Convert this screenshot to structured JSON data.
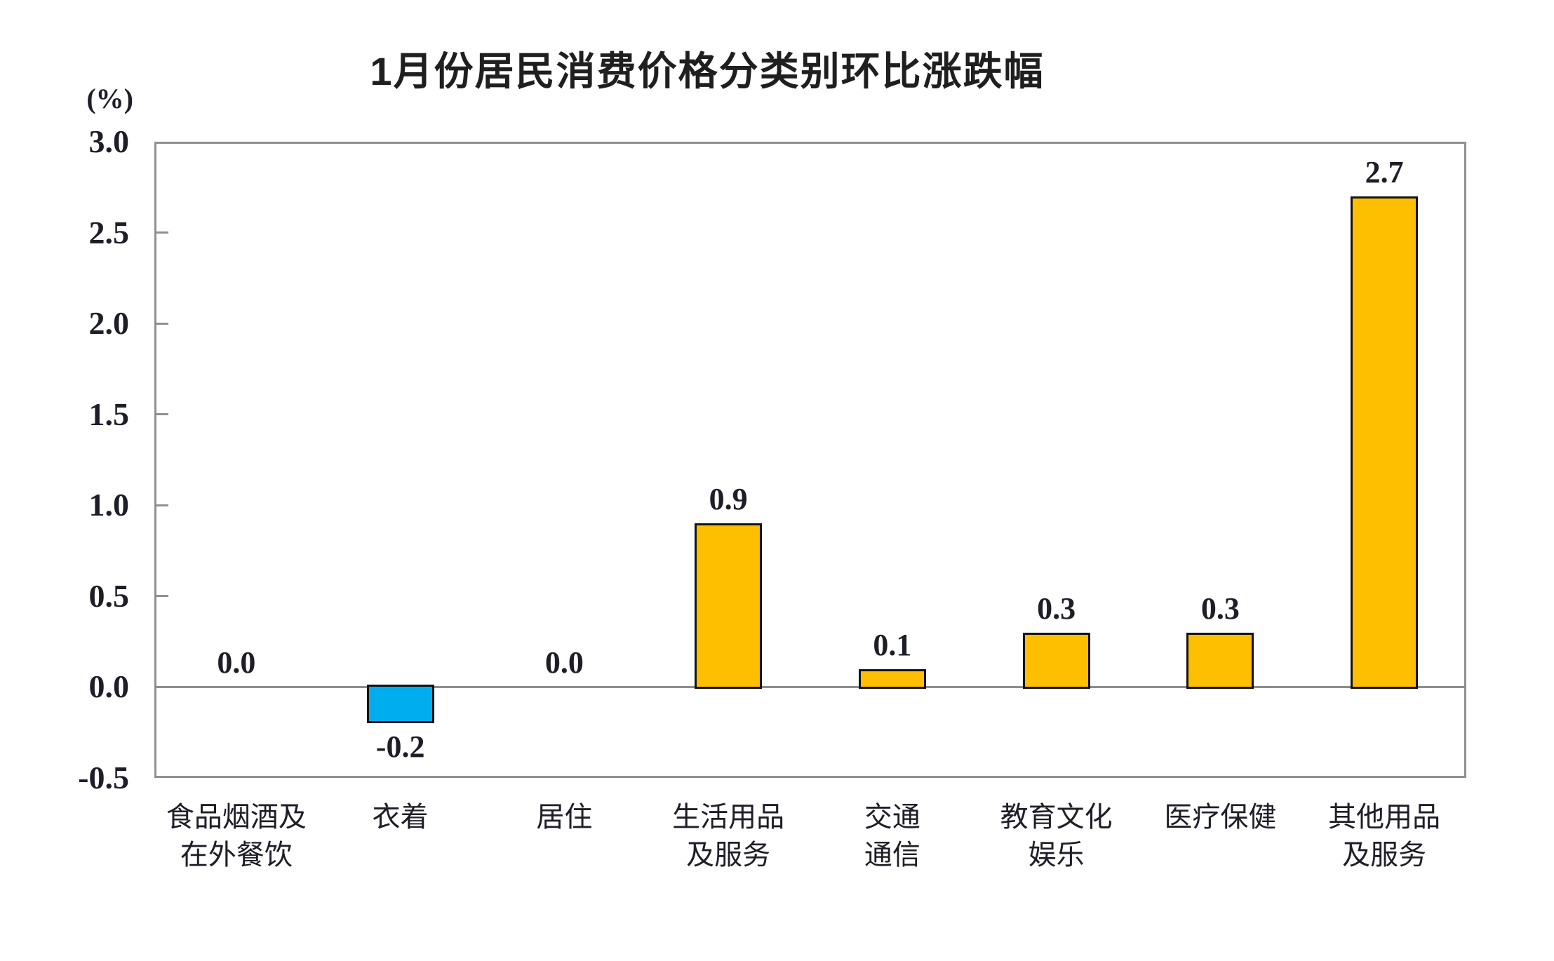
{
  "chart_data": {
    "type": "bar",
    "title": "1月份居民消费价格分类别环比涨跌幅",
    "unit_label": "(%)",
    "categories": [
      "食品烟酒及\n在外餐饮",
      "衣着",
      "居住",
      "生活用品\n及服务",
      "交通\n通信",
      "教育文化\n娱乐",
      "医疗保健",
      "其他用品\n及服务"
    ],
    "values": [
      0.0,
      -0.2,
      0.0,
      0.9,
      0.1,
      0.3,
      0.3,
      2.7
    ],
    "value_labels": [
      "0.0",
      "-0.2",
      "0.0",
      "0.9",
      "0.1",
      "0.3",
      "0.3",
      "2.7"
    ],
    "xlabel": "",
    "ylabel": "(%)",
    "ylim": [
      -0.5,
      3.0
    ],
    "yticks": [
      3.0,
      2.5,
      2.0,
      1.5,
      1.0,
      0.5,
      0.0,
      -0.5
    ],
    "ytick_labels": [
      "3.0",
      "2.5",
      "2.0",
      "1.5",
      "1.0",
      "0.5",
      "0.0",
      "-0.5"
    ],
    "grid": false,
    "legend": false,
    "colors": {
      "positive_bar": "#FDBF00",
      "negative_bar": "#00AEEF",
      "bar_border": "#141414",
      "axis": "#909090",
      "text": "#1e1e28",
      "title_text": "#1f1f1f",
      "background": "#ffffff"
    }
  }
}
